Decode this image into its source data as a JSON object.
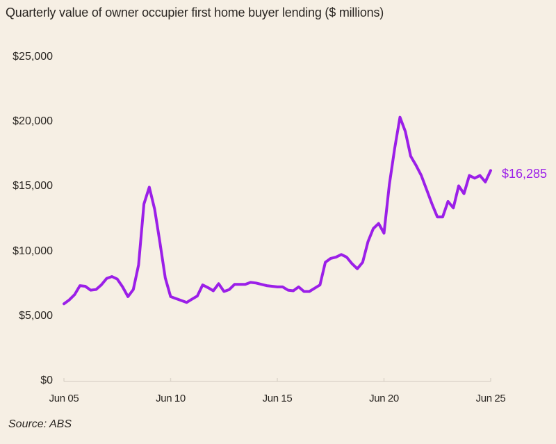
{
  "title": "Quarterly value of owner occupier first home buyer lending ($ millions)",
  "source": "Source: ABS",
  "end_label": "$16,285",
  "colors": {
    "line": "#9b1fe8",
    "background": "#f6efe4",
    "axis": "#ddd6cb",
    "text": "#2a2622"
  },
  "y_axis": {
    "ticks": [
      {
        "value": 25000,
        "label": "$25,000"
      },
      {
        "value": 20000,
        "label": "$20,000"
      },
      {
        "value": 15000,
        "label": "$15,000"
      },
      {
        "value": 10000,
        "label": "$10,000"
      },
      {
        "value": 5000,
        "label": "$5,000"
      },
      {
        "value": 0,
        "label": "$0"
      }
    ]
  },
  "x_axis": {
    "ticks": [
      {
        "index": 0,
        "label": "Jun 05"
      },
      {
        "index": 20,
        "label": "Jun 10"
      },
      {
        "index": 40,
        "label": "Jun 15"
      },
      {
        "index": 60,
        "label": "Jun 20"
      },
      {
        "index": 80,
        "label": "Jun 25"
      }
    ]
  },
  "chart_data": {
    "type": "line",
    "title": "Quarterly value of owner occupier first home buyer lending ($ millions)",
    "xlabel": "",
    "ylabel": "$ millions",
    "ylim": [
      0,
      25000
    ],
    "grid": false,
    "legend": "none",
    "annotations": [
      {
        "text": "$16,285",
        "at": "Jun 25"
      }
    ],
    "x_tick_labels": [
      "Jun 05",
      "Jun 10",
      "Jun 15",
      "Jun 20",
      "Jun 25"
    ],
    "x_range": [
      "Jun 05",
      "Jun 25"
    ],
    "frequency": "quarterly",
    "series": [
      {
        "name": "Owner occupier first home buyer lending",
        "values": [
          6000,
          6300,
          6700,
          7400,
          7350,
          7050,
          7100,
          7450,
          7950,
          8100,
          7900,
          7300,
          6550,
          7100,
          9000,
          13700,
          15000,
          13300,
          10700,
          8000,
          6550,
          6400,
          6250,
          6100,
          6350,
          6600,
          7450,
          7250,
          7000,
          7550,
          6950,
          7100,
          7500,
          7500,
          7500,
          7650,
          7600,
          7500,
          7400,
          7350,
          7300,
          7300,
          7050,
          7000,
          7300,
          6950,
          6950,
          7200,
          7450,
          9200,
          9500,
          9600,
          9800,
          9600,
          9100,
          8700,
          9200,
          10800,
          11800,
          12200,
          11450,
          15200,
          18000,
          20400,
          19300,
          17400,
          16700,
          15900,
          14800,
          13700,
          12700,
          12700,
          13900,
          13400,
          15100,
          14500,
          15900,
          15700,
          15900,
          15400,
          16285
        ]
      }
    ]
  }
}
